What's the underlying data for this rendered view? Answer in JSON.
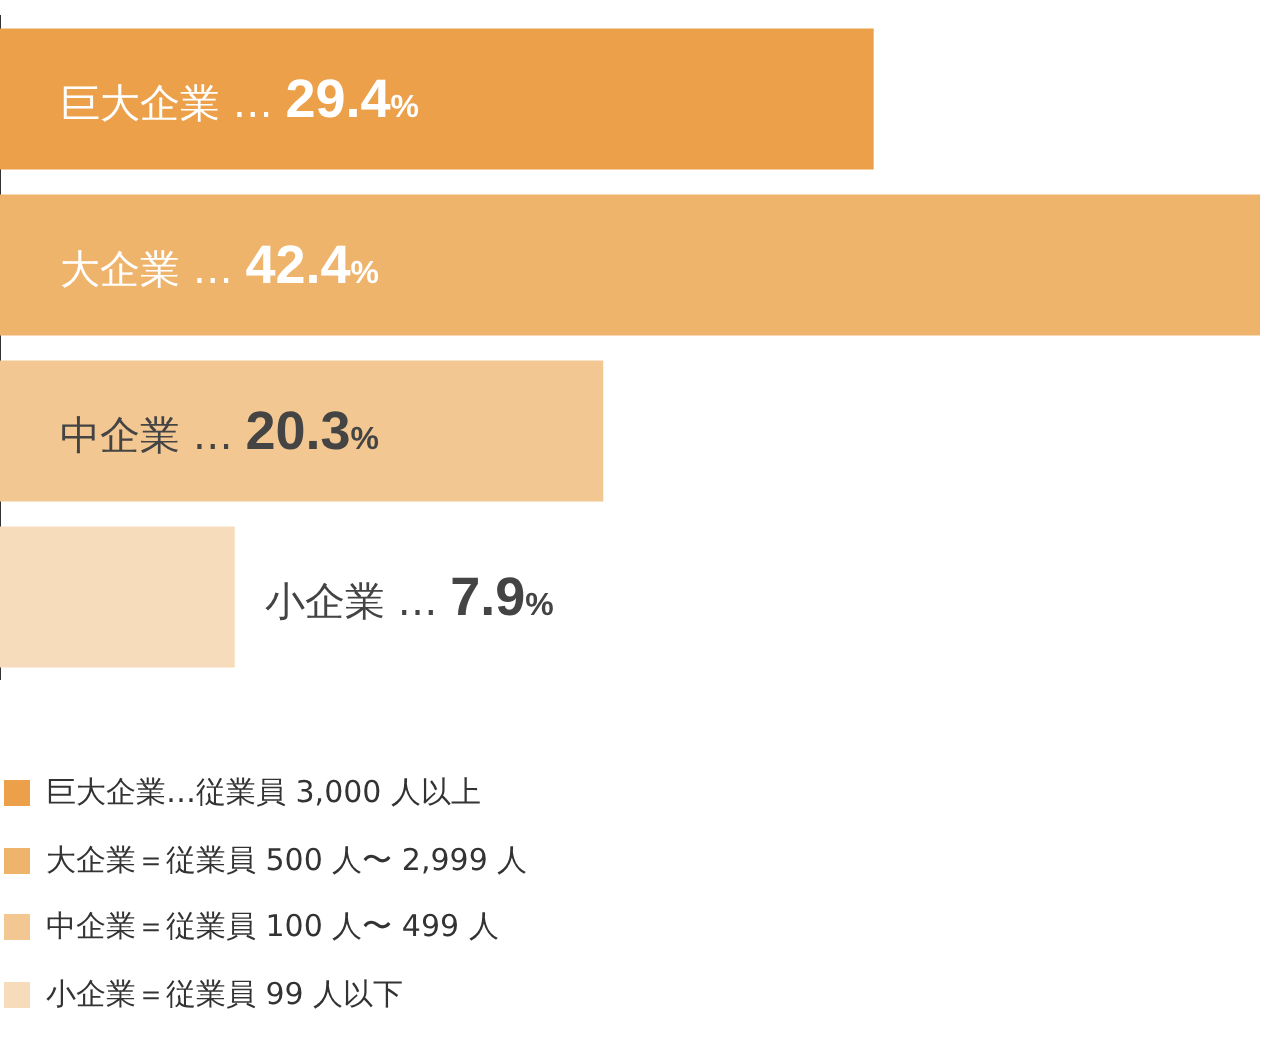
{
  "chart_data": {
    "type": "bar",
    "orientation": "horizontal",
    "categories": [
      "巨大企業",
      "大企業",
      "中企業",
      "小企業"
    ],
    "values": [
      29.4,
      42.4,
      20.3,
      7.9
    ],
    "colors": [
      "#eca04a",
      "#efb46c",
      "#f2c792",
      "#f7dcbc"
    ],
    "value_labels": [
      "… 29.4%",
      "… 42.4%",
      "… 20.3%",
      "… 7.9%"
    ],
    "xlim": [
      0,
      42.4
    ],
    "tick_labels": false,
    "grid": false,
    "legend": false,
    "annotations": [
      "巨大企業…従業員 3,000 人以上",
      "大企業＝従業員 500 人〜 2,999 人",
      "中企業＝従業員 100 人〜 499 人",
      "小企業＝従業員 99 人以下"
    ]
  }
}
